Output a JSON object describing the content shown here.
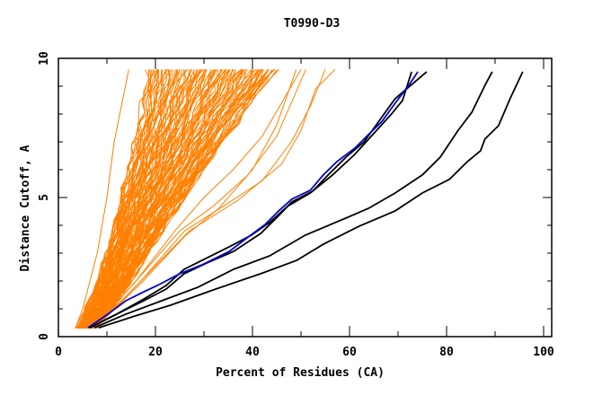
{
  "chart_data": {
    "type": "line",
    "title": "T0990-D3",
    "xlabel": "Percent of Residues (CA)",
    "ylabel": "Distance Cutoff, A",
    "xlim": [
      0,
      100
    ],
    "ylim": [
      0,
      10
    ],
    "x_major_ticks": [
      0,
      20,
      40,
      60,
      80,
      100
    ],
    "x_minor_ticks": [
      10,
      30,
      50,
      70,
      90
    ],
    "y_major_ticks": [
      0,
      5,
      10
    ],
    "y_minor_ticks": [
      1,
      2,
      3,
      4,
      6,
      7,
      8,
      9
    ],
    "x_tick_labels": [
      "0",
      "20",
      "40",
      "60",
      "80",
      "100"
    ],
    "y_tick_labels": [
      "0",
      "5",
      "10"
    ],
    "grid": false,
    "legend": "none",
    "colors": {
      "other_models": "#ff8000",
      "highlighted": "#0000d0",
      "black_models": "#000000",
      "axis": "#000000"
    },
    "highlighted_series": {
      "name": "blue",
      "x": [
        6.1,
        10.2,
        13.9,
        17.6,
        20.4,
        25.0,
        29.6,
        35.2,
        38.9,
        42.6,
        45.4,
        48.1,
        51.9,
        54.6,
        57.4,
        61.1,
        63.9,
        66.7,
        69.4,
        72.2,
        74.1
      ],
      "y": [
        0.32,
        0.81,
        1.29,
        1.61,
        1.84,
        2.26,
        2.58,
        3.06,
        3.55,
        4.03,
        4.52,
        4.94,
        5.26,
        5.81,
        6.29,
        6.77,
        7.26,
        7.74,
        8.39,
        9.03,
        9.52
      ]
    },
    "black_series": [
      {
        "name": "black-1",
        "x": [
          6.5,
          12.0,
          17.6,
          22.2,
          25.9,
          29.6,
          35.2,
          39.8,
          43.5,
          47.2,
          51.9,
          56.5,
          61.1,
          64.8,
          68.5,
          70.9,
          72.8
        ],
        "y": [
          0.32,
          0.81,
          1.35,
          1.84,
          2.42,
          2.74,
          3.23,
          3.65,
          4.1,
          4.68,
          5.16,
          5.81,
          6.55,
          7.26,
          7.97,
          8.48,
          9.52
        ]
      },
      {
        "name": "black-2",
        "x": [
          6.5,
          12.0,
          17.6,
          22.2,
          25.9,
          30.6,
          36.1,
          41.7,
          45.4,
          48.1,
          52.4,
          55.6,
          59.3,
          63.0,
          66.7,
          69.4,
          75.9
        ],
        "y": [
          0.32,
          0.81,
          1.29,
          1.71,
          2.26,
          2.65,
          3.06,
          3.71,
          4.35,
          4.84,
          5.23,
          5.81,
          6.45,
          7.0,
          7.9,
          8.55,
          9.52
        ]
      },
      {
        "name": "black-3",
        "x": [
          7.4,
          13.9,
          21.3,
          28.7,
          36.1,
          43.5,
          50.9,
          58.3,
          63.9,
          69.4,
          75.0,
          78.7,
          82.4,
          85.2,
          87.9,
          89.4
        ],
        "y": [
          0.32,
          0.81,
          1.29,
          1.77,
          2.42,
          2.9,
          3.65,
          4.19,
          4.61,
          5.16,
          5.81,
          6.45,
          7.42,
          8.06,
          9.03,
          9.52
        ]
      },
      {
        "name": "black-4",
        "x": [
          8.3,
          15.7,
          23.1,
          32.4,
          41.7,
          49.1,
          54.6,
          62.0,
          69.4,
          75.0,
          80.6,
          84.3,
          87.0,
          87.9,
          90.7,
          93.1,
          95.7
        ],
        "y": [
          0.32,
          0.74,
          1.13,
          1.71,
          2.26,
          2.74,
          3.32,
          3.97,
          4.52,
          5.16,
          5.65,
          6.29,
          6.68,
          7.1,
          7.58,
          8.55,
          9.52
        ]
      }
    ],
    "other_models_band": {
      "name": "orange",
      "count_approx": 150,
      "y_start": 0.3,
      "y_end": 9.6,
      "left_envelope": {
        "y": [
          0.3,
          1.0,
          2.0,
          3.0,
          5.0,
          7.0,
          9.6
        ],
        "x": [
          3.5,
          5.0,
          6.5,
          8.0,
          10.0,
          11.5,
          14.5
        ]
      },
      "core_left": {
        "y": [
          0.3,
          2.0,
          4.0,
          6.0,
          8.0,
          9.6
        ],
        "x": [
          4.0,
          8.5,
          11.5,
          14.5,
          17.0,
          18.5
        ]
      },
      "core_right": {
        "y": [
          0.3,
          2.0,
          4.0,
          6.0,
          8.0,
          9.6
        ],
        "x": [
          7.5,
          15.0,
          22.0,
          30.0,
          38.0,
          45.0
        ]
      },
      "outliers": [
        {
          "x": [
            7.0,
            16.0,
            24.0,
            30.0,
            36.0,
            42.0,
            46.0,
            50.0
          ],
          "y": [
            0.3,
            2.0,
            3.8,
            5.0,
            6.0,
            7.2,
            8.4,
            9.6
          ]
        },
        {
          "x": [
            7.0,
            16.0,
            25.0,
            32.0,
            39.0,
            45.0,
            51.0
          ],
          "y": [
            0.3,
            2.0,
            3.8,
            4.7,
            5.8,
            7.2,
            9.6
          ]
        },
        {
          "x": [
            7.5,
            17.0,
            26.0,
            35.0,
            42.0,
            48.0,
            52.0,
            55.0
          ],
          "y": [
            0.3,
            2.0,
            3.8,
            4.8,
            5.6,
            7.0,
            8.3,
            9.6
          ]
        },
        {
          "x": [
            7.5,
            17.0,
            27.0,
            37.0,
            46.0,
            50.0,
            53.0,
            57.0
          ],
          "y": [
            0.3,
            2.0,
            3.8,
            4.9,
            6.2,
            7.4,
            8.9,
            9.6
          ]
        },
        {
          "x": [
            7.5,
            17.5,
            26.0,
            33.0,
            40.0,
            45.0,
            49.0
          ],
          "y": [
            0.3,
            2.0,
            3.6,
            4.6,
            6.0,
            7.6,
            9.6
          ]
        }
      ]
    }
  }
}
